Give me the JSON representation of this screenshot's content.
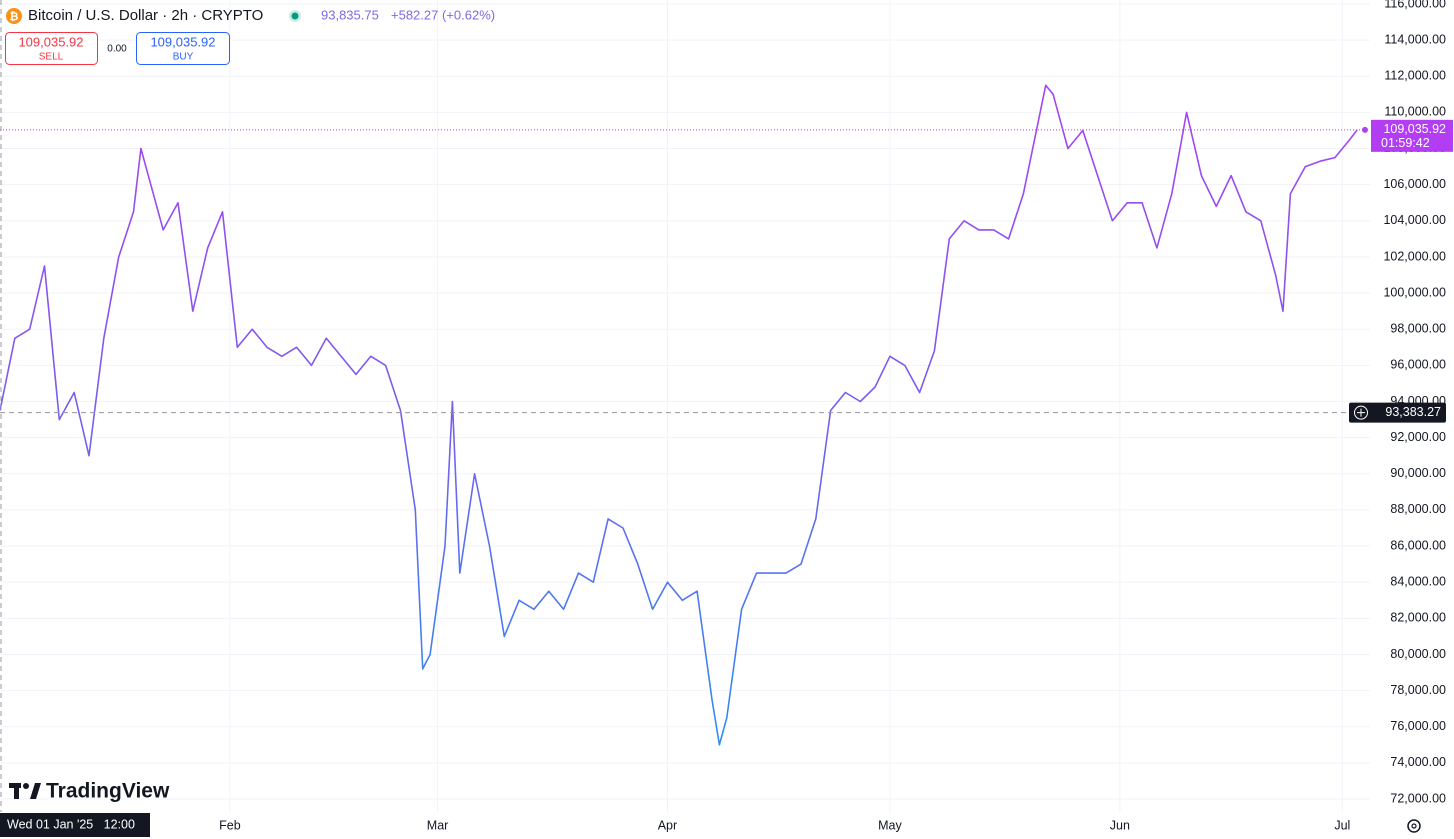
{
  "chart_data": {
    "type": "line",
    "title": "Bitcoin / U.S. Dollar · 2h · CRYPTO",
    "price": "93,835.75",
    "change": "+582.27 (+0.62%)",
    "sell": {
      "price": "109,035.92",
      "label": "SELL"
    },
    "spread": "0.00",
    "buy": {
      "price": "109,035.92",
      "label": "BUY"
    },
    "logo": "TradingView",
    "last_price": {
      "value": 109035.92,
      "label": "109,035.92",
      "countdown": "01:59:42",
      "color": "#b33df2"
    },
    "crosshair": {
      "value": 93383.27,
      "label": "93,383.27",
      "x_label": "Wed 01 Jan '25   12:00"
    },
    "gradient": [
      "#2196f3",
      "#7b5cf0",
      "#b33df2"
    ],
    "grid": true,
    "xlim": [
      "2025-01-01",
      "2025-07-05"
    ],
    "xticks": [
      {
        "value": "2025-02-01",
        "label": "Feb"
      },
      {
        "value": "2025-03-01",
        "label": "Mar"
      },
      {
        "value": "2025-04-01",
        "label": "Apr"
      },
      {
        "value": "2025-05-01",
        "label": "May"
      },
      {
        "value": "2025-06-01",
        "label": "Jun"
      },
      {
        "value": "2025-07-01",
        "label": "Jul"
      }
    ],
    "ylim": [
      72000,
      116000
    ],
    "yticks": [
      {
        "value": 72000,
        "label": "72,000.00"
      },
      {
        "value": 74000,
        "label": "74,000.00"
      },
      {
        "value": 76000,
        "label": "76,000.00"
      },
      {
        "value": 78000,
        "label": "78,000.00"
      },
      {
        "value": 80000,
        "label": "80,000.00"
      },
      {
        "value": 82000,
        "label": "82,000.00"
      },
      {
        "value": 84000,
        "label": "84,000.00"
      },
      {
        "value": 86000,
        "label": "86,000.00"
      },
      {
        "value": 88000,
        "label": "88,000.00"
      },
      {
        "value": 90000,
        "label": "90,000.00"
      },
      {
        "value": 92000,
        "label": "92,000.00"
      },
      {
        "value": 94000,
        "label": "94,000.00"
      },
      {
        "value": 96000,
        "label": "96,000.00"
      },
      {
        "value": 98000,
        "label": "98,000.00"
      },
      {
        "value": 100000,
        "label": "100,000.00"
      },
      {
        "value": 102000,
        "label": "102,000.00"
      },
      {
        "value": 104000,
        "label": "104,000.00"
      },
      {
        "value": 106000,
        "label": "106,000.00"
      },
      {
        "value": 108000,
        "label": "108,000.00"
      },
      {
        "value": 110000,
        "label": "110,000.00"
      },
      {
        "value": 112000,
        "label": "112,000.00"
      },
      {
        "value": 114000,
        "label": "114,000.00"
      },
      {
        "value": 116000,
        "label": "116,000.00"
      }
    ],
    "x": [
      "2025-01-01",
      "2025-01-03",
      "2025-01-05",
      "2025-01-07",
      "2025-01-09",
      "2025-01-11",
      "2025-01-13",
      "2025-01-15",
      "2025-01-17",
      "2025-01-19",
      "2025-01-20",
      "2025-01-21",
      "2025-01-23",
      "2025-01-25",
      "2025-01-27",
      "2025-01-29",
      "2025-01-31",
      "2025-02-02",
      "2025-02-04",
      "2025-02-06",
      "2025-02-08",
      "2025-02-10",
      "2025-02-12",
      "2025-02-14",
      "2025-02-16",
      "2025-02-18",
      "2025-02-20",
      "2025-02-22",
      "2025-02-24",
      "2025-02-26",
      "2025-02-27",
      "2025-02-28",
      "2025-03-02",
      "2025-03-03",
      "2025-03-04",
      "2025-03-06",
      "2025-03-08",
      "2025-03-10",
      "2025-03-12",
      "2025-03-14",
      "2025-03-16",
      "2025-03-18",
      "2025-03-20",
      "2025-03-22",
      "2025-03-24",
      "2025-03-26",
      "2025-03-28",
      "2025-03-30",
      "2025-04-01",
      "2025-04-03",
      "2025-04-05",
      "2025-04-07",
      "2025-04-08",
      "2025-04-09",
      "2025-04-11",
      "2025-04-13",
      "2025-04-15",
      "2025-04-17",
      "2025-04-19",
      "2025-04-21",
      "2025-04-23",
      "2025-04-25",
      "2025-04-27",
      "2025-04-29",
      "2025-05-01",
      "2025-05-03",
      "2025-05-05",
      "2025-05-07",
      "2025-05-09",
      "2025-05-11",
      "2025-05-13",
      "2025-05-15",
      "2025-05-17",
      "2025-05-19",
      "2025-05-21",
      "2025-05-22",
      "2025-05-23",
      "2025-05-25",
      "2025-05-27",
      "2025-05-29",
      "2025-05-31",
      "2025-06-02",
      "2025-06-04",
      "2025-06-06",
      "2025-06-08",
      "2025-06-10",
      "2025-06-12",
      "2025-06-14",
      "2025-06-16",
      "2025-06-18",
      "2025-06-20",
      "2025-06-22",
      "2025-06-23",
      "2025-06-24",
      "2025-06-26",
      "2025-06-28",
      "2025-06-30",
      "2025-07-02",
      "2025-07-03"
    ],
    "values": [
      93500,
      97500,
      98000,
      101500,
      93000,
      94500,
      91000,
      97500,
      102000,
      104500,
      108000,
      106500,
      103500,
      105000,
      99000,
      102500,
      104500,
      97000,
      98000,
      97000,
      96500,
      97000,
      96000,
      97500,
      96500,
      95500,
      96500,
      96000,
      93500,
      88000,
      79200,
      80000,
      86000,
      94000,
      84500,
      90000,
      86000,
      81000,
      83000,
      82500,
      83500,
      82500,
      84500,
      84000,
      87500,
      87000,
      85000,
      82500,
      84000,
      83000,
      83500,
      77500,
      75000,
      76500,
      82500,
      84500,
      84500,
      84500,
      85000,
      87500,
      93500,
      94500,
      94000,
      94800,
      96500,
      96000,
      94500,
      96800,
      103000,
      104000,
      103500,
      103500,
      103000,
      105500,
      109500,
      111500,
      111000,
      108000,
      109000,
      106500,
      104000,
      105000,
      105000,
      102500,
      105500,
      110000,
      106500,
      104800,
      106500,
      104500,
      104000,
      101000,
      99000,
      105500,
      107000,
      107300,
      107500,
      108500,
      109035.92
    ]
  }
}
